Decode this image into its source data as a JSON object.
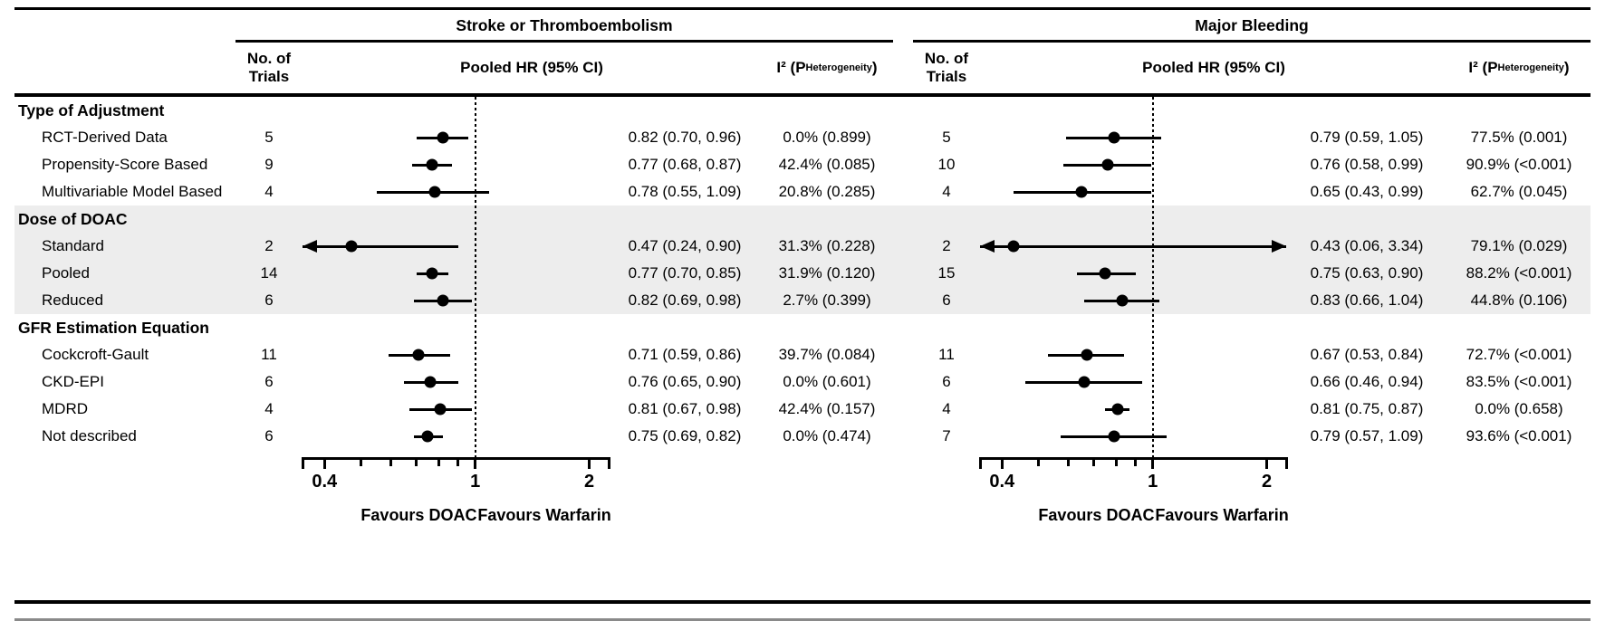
{
  "chart_data": {
    "type": "forest",
    "axis": {
      "scale": "log",
      "min": 0.35,
      "max": 2.25,
      "tick_values": [
        0.4,
        1,
        2
      ],
      "tick_labels": [
        "0.4",
        "1",
        "2"
      ],
      "minor_tick_values": [
        0.5,
        0.6,
        0.7,
        0.8,
        0.9
      ],
      "reference_value": 1,
      "favours_left": "Favours DOAC",
      "favours_right": "Favours Warfarin"
    },
    "panels": [
      {
        "title": "Stroke or Thromboembolism",
        "trials_header": "No. of\nTrials",
        "hr_header": "Pooled HR (95% CI)",
        "i2_header_main": "I² (P",
        "i2_header_sub": "Heterogeneity",
        "i2_header_end": ")"
      },
      {
        "title": "Major Bleeding",
        "trials_header": "No. of\nTrials",
        "hr_header": "Pooled HR (95% CI)",
        "i2_header_main": "I² (P",
        "i2_header_sub": "Heterogeneity",
        "i2_header_end": ")"
      }
    ],
    "colors": {
      "marker": "#000000",
      "shaded_band": "#ededed"
    },
    "groups": [
      {
        "label": "Type of Adjustment",
        "shaded": false,
        "rows": [
          {
            "label": "RCT-Derived Data",
            "panels": [
              {
                "trials": "5",
                "hr": 0.82,
                "lo": 0.7,
                "hi": 0.96,
                "hr_text": "0.82 (0.70, 0.96)",
                "i2_text": "0.0% (0.899)"
              },
              {
                "trials": "5",
                "hr": 0.79,
                "lo": 0.59,
                "hi": 1.05,
                "hr_text": "0.79 (0.59, 1.05)",
                "i2_text": "77.5% (0.001)"
              }
            ]
          },
          {
            "label": "Propensity-Score Based",
            "panels": [
              {
                "trials": "9",
                "hr": 0.77,
                "lo": 0.68,
                "hi": 0.87,
                "hr_text": "0.77 (0.68, 0.87)",
                "i2_text": "42.4% (0.085)"
              },
              {
                "trials": "10",
                "hr": 0.76,
                "lo": 0.58,
                "hi": 0.99,
                "hr_text": "0.76 (0.58, 0.99)",
                "i2_text": "90.9% (<0.001)"
              }
            ]
          },
          {
            "label": "Multivariable Model Based",
            "panels": [
              {
                "trials": "4",
                "hr": 0.78,
                "lo": 0.55,
                "hi": 1.09,
                "hr_text": "0.78 (0.55, 1.09)",
                "i2_text": "20.8% (0.285)"
              },
              {
                "trials": "4",
                "hr": 0.65,
                "lo": 0.43,
                "hi": 0.99,
                "hr_text": "0.65 (0.43, 0.99)",
                "i2_text": "62.7% (0.045)"
              }
            ]
          }
        ]
      },
      {
        "label": "Dose of DOAC",
        "shaded": true,
        "rows": [
          {
            "label": "Standard",
            "panels": [
              {
                "trials": "2",
                "hr": 0.47,
                "lo": 0.24,
                "hi": 0.9,
                "hr_text": "0.47 (0.24, 0.90)",
                "i2_text": "31.3% (0.228)"
              },
              {
                "trials": "2",
                "hr": 0.43,
                "lo": 0.06,
                "hi": 3.34,
                "hr_text": "0.43 (0.06, 3.34)",
                "i2_text": "79.1% (0.029)"
              }
            ]
          },
          {
            "label": "Pooled",
            "panels": [
              {
                "trials": "14",
                "hr": 0.77,
                "lo": 0.7,
                "hi": 0.85,
                "hr_text": "0.77 (0.70, 0.85)",
                "i2_text": "31.9% (0.120)"
              },
              {
                "trials": "15",
                "hr": 0.75,
                "lo": 0.63,
                "hi": 0.9,
                "hr_text": "0.75 (0.63, 0.90)",
                "i2_text": "88.2% (<0.001)"
              }
            ]
          },
          {
            "label": "Reduced",
            "panels": [
              {
                "trials": "6",
                "hr": 0.82,
                "lo": 0.69,
                "hi": 0.98,
                "hr_text": "0.82 (0.69, 0.98)",
                "i2_text": "2.7% (0.399)"
              },
              {
                "trials": "6",
                "hr": 0.83,
                "lo": 0.66,
                "hi": 1.04,
                "hr_text": "0.83 (0.66, 1.04)",
                "i2_text": "44.8% (0.106)"
              }
            ]
          }
        ]
      },
      {
        "label": "GFR Estimation Equation",
        "shaded": false,
        "rows": [
          {
            "label": "Cockcroft-Gault",
            "panels": [
              {
                "trials": "11",
                "hr": 0.71,
                "lo": 0.59,
                "hi": 0.86,
                "hr_text": "0.71 (0.59, 0.86)",
                "i2_text": "39.7% (0.084)"
              },
              {
                "trials": "11",
                "hr": 0.67,
                "lo": 0.53,
                "hi": 0.84,
                "hr_text": "0.67 (0.53, 0.84)",
                "i2_text": "72.7% (<0.001)"
              }
            ]
          },
          {
            "label": "CKD-EPI",
            "panels": [
              {
                "trials": "6",
                "hr": 0.76,
                "lo": 0.65,
                "hi": 0.9,
                "hr_text": "0.76 (0.65, 0.90)",
                "i2_text": "0.0% (0.601)"
              },
              {
                "trials": "6",
                "hr": 0.66,
                "lo": 0.46,
                "hi": 0.94,
                "hr_text": "0.66 (0.46, 0.94)",
                "i2_text": "83.5% (<0.001)"
              }
            ]
          },
          {
            "label": "MDRD",
            "panels": [
              {
                "trials": "4",
                "hr": 0.81,
                "lo": 0.67,
                "hi": 0.98,
                "hr_text": "0.81 (0.67, 0.98)",
                "i2_text": "42.4% (0.157)"
              },
              {
                "trials": "4",
                "hr": 0.81,
                "lo": 0.75,
                "hi": 0.87,
                "hr_text": "0.81 (0.75, 0.87)",
                "i2_text": "0.0% (0.658)"
              }
            ]
          },
          {
            "label": "Not described",
            "panels": [
              {
                "trials": "6",
                "hr": 0.75,
                "lo": 0.69,
                "hi": 0.82,
                "hr_text": "0.75 (0.69, 0.82)",
                "i2_text": "0.0% (0.474)"
              },
              {
                "trials": "7",
                "hr": 0.79,
                "lo": 0.57,
                "hi": 1.09,
                "hr_text": "0.79 (0.57, 1.09)",
                "i2_text": "93.6% (<0.001)"
              }
            ]
          }
        ]
      }
    ]
  }
}
